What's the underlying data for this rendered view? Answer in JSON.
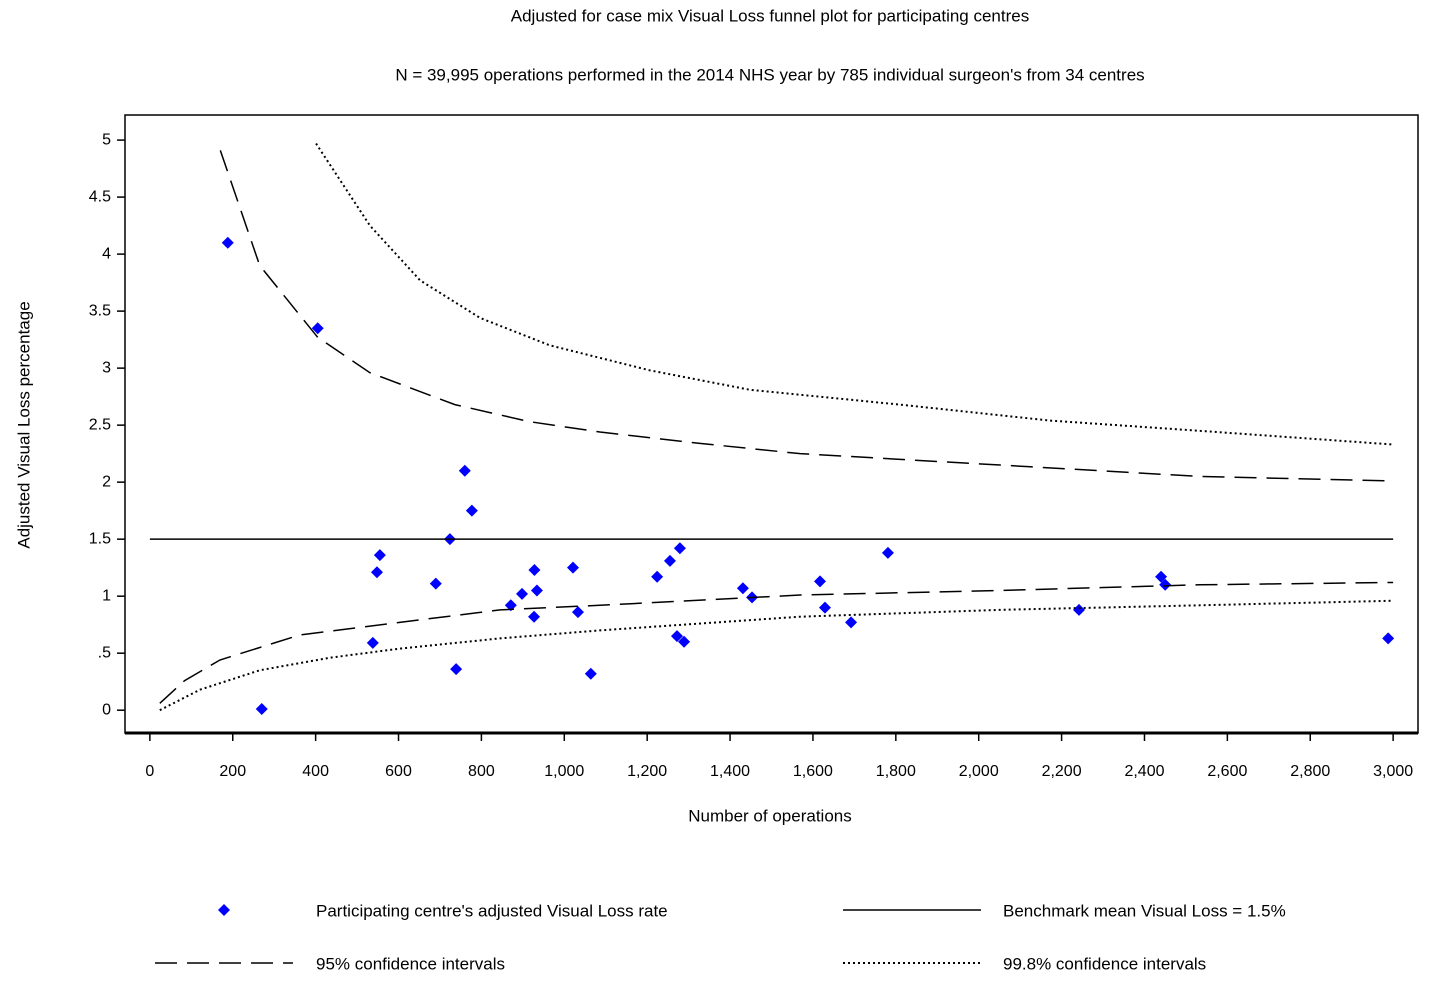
{
  "chart_data": {
    "type": "scatter",
    "title": "Adjusted for case mix Visual Loss funnel plot for participating centres",
    "subtitle": "N = 39,995 operations performed in the 2014 NHS year by 785 individual surgeon's from 34 centres",
    "x_label": "Number of operations",
    "y_label": "Adjusted Visual Loss percentage",
    "xlim": [
      -60,
      3060
    ],
    "ylim": [
      -0.2,
      5.22
    ],
    "xticks": [
      0,
      200,
      400,
      600,
      800,
      {
        "value": 1000,
        "label": "1,000"
      },
      {
        "value": 1200,
        "label": "1,200"
      },
      {
        "value": 1400,
        "label": "1,400"
      },
      {
        "value": 1600,
        "label": "1,600"
      },
      {
        "value": 1800,
        "label": "1,800"
      },
      {
        "value": 2000,
        "label": "2,000"
      },
      {
        "value": 2200,
        "label": "2,200"
      },
      {
        "value": 2400,
        "label": "2,400"
      },
      {
        "value": 2600,
        "label": "2,600"
      },
      {
        "value": 2800,
        "label": "2,800"
      },
      {
        "value": 3000,
        "label": "3,000"
      }
    ],
    "yticks": [
      0,
      {
        "value": 0.5,
        "label": ".5"
      },
      1,
      1.5,
      2,
      2.5,
      3,
      3.5,
      4,
      4.5,
      5
    ],
    "grid": false,
    "series": [
      {
        "name": "Participating centre's adjusted Visual Loss rate",
        "type": "scatter",
        "color": "#0000ff",
        "x": [
          188,
          405,
          538,
          548,
          555,
          270,
          690,
          724,
          739,
          760,
          777,
          871,
          898,
          927,
          928,
          934,
          1021,
          1033,
          1064,
          1224,
          1255,
          1279,
          1272,
          1289,
          1431,
          1453,
          1617,
          1629,
          1692,
          1781,
          2242,
          2440,
          2450,
          2988
        ],
        "values": [
          4.1,
          3.35,
          0.59,
          1.21,
          1.36,
          0.01,
          1.11,
          1.5,
          0.36,
          2.1,
          1.75,
          0.92,
          1.02,
          0.82,
          1.23,
          1.05,
          1.25,
          0.86,
          0.32,
          1.17,
          1.31,
          1.42,
          0.65,
          0.6,
          1.07,
          0.99,
          1.13,
          0.9,
          0.77,
          1.38,
          0.88,
          1.17,
          1.1,
          0.63
        ]
      },
      {
        "name": "Benchmark mean Visual Loss = 1.5%",
        "type": "line",
        "style": "solid",
        "color": "#000000",
        "x": [
          0,
          3000
        ],
        "values": [
          1.5,
          1.5
        ]
      },
      {
        "name": "95% confidence intervals",
        "type": "band",
        "style": "dashed",
        "color": "#000000",
        "upper": {
          "x": [
            170,
            265,
            405,
            531,
            736,
            917,
            1086,
            1327,
            1569,
            1810,
            2052,
            2293,
            2534,
            3000
          ],
          "values": [
            4.91,
            3.9,
            3.27,
            2.96,
            2.68,
            2.53,
            2.44,
            2.34,
            2.25,
            2.2,
            2.15,
            2.1,
            2.05,
            2.01
          ]
        },
        "lower": {
          "x": [
            24,
            84,
            169,
            362,
            603,
            845,
            1086,
            1569,
            2052,
            2534,
            3000
          ],
          "values": [
            0.06,
            0.26,
            0.44,
            0.66,
            0.77,
            0.88,
            0.92,
            1.01,
            1.05,
            1.1,
            1.12
          ]
        }
      },
      {
        "name": "99.8% confidence intervals",
        "type": "band",
        "style": "dotted",
        "color": "#000000",
        "upper": {
          "x": [
            401,
            531,
            652,
            797,
            965,
            1207,
            1448,
            1810,
            2172,
            2534,
            3000
          ],
          "values": [
            4.97,
            4.25,
            3.77,
            3.44,
            3.2,
            2.98,
            2.81,
            2.68,
            2.54,
            2.45,
            2.33
          ]
        },
        "lower": {
          "x": [
            24,
            121,
            265,
            434,
            603,
            845,
            1086,
            1569,
            2052,
            2534,
            3000
          ],
          "values": [
            0.0,
            0.18,
            0.35,
            0.46,
            0.54,
            0.63,
            0.7,
            0.82,
            0.88,
            0.92,
            0.96
          ]
        }
      }
    ]
  }
}
